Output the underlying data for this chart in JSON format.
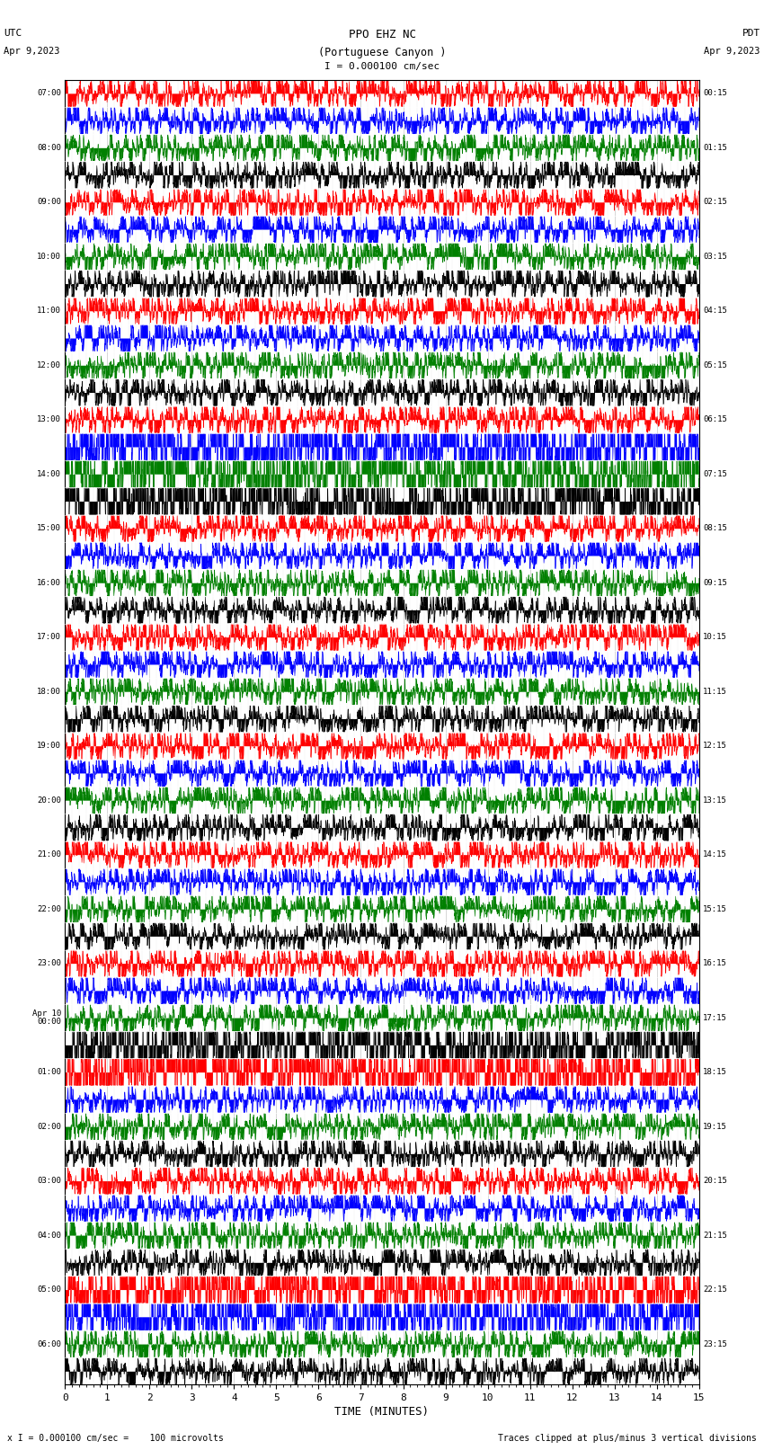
{
  "title_line1": "PPO EHZ NC",
  "title_line2": "(Portuguese Canyon )",
  "scale_label": "I = 0.000100 cm/sec",
  "utc_label": "UTC",
  "utc_date": "Apr 9,2023",
  "pdt_label": "PDT",
  "pdt_date": "Apr 9,2023",
  "xlabel": "TIME (MINUTES)",
  "footer_left": "x I = 0.000100 cm/sec =    100 microvolts",
  "footer_right": "Traces clipped at plus/minus 3 vertical divisions",
  "xlim": [
    0,
    15
  ],
  "xticks": [
    0,
    1,
    2,
    3,
    4,
    5,
    6,
    7,
    8,
    9,
    10,
    11,
    12,
    13,
    14,
    15
  ],
  "bg_color": "#ffffff",
  "plot_bg": "#ffffff",
  "num_traces": 48,
  "colors_cycle": [
    "#ff0000",
    "#0000ff",
    "#008000",
    "#000000"
  ],
  "left_labels": [
    "07:00",
    "",
    "08:00",
    "",
    "09:00",
    "",
    "10:00",
    "",
    "11:00",
    "",
    "12:00",
    "",
    "13:00",
    "",
    "14:00",
    "",
    "15:00",
    "",
    "16:00",
    "",
    "17:00",
    "",
    "18:00",
    "",
    "19:00",
    "",
    "20:00",
    "",
    "21:00",
    "",
    "22:00",
    "",
    "23:00",
    "",
    "Apr 10\n00:00",
    "",
    "01:00",
    "",
    "02:00",
    "",
    "03:00",
    "",
    "04:00",
    "",
    "05:00",
    "",
    "06:00",
    ""
  ],
  "right_labels": [
    "00:15",
    "",
    "01:15",
    "",
    "02:15",
    "",
    "03:15",
    "",
    "04:15",
    "",
    "05:15",
    "",
    "06:15",
    "",
    "07:15",
    "",
    "08:15",
    "",
    "09:15",
    "",
    "10:15",
    "",
    "11:15",
    "",
    "12:15",
    "",
    "13:15",
    "",
    "14:15",
    "",
    "15:15",
    "",
    "16:15",
    "",
    "17:15",
    "",
    "18:15",
    "",
    "19:15",
    "",
    "20:15",
    "",
    "21:15",
    "",
    "22:15",
    "",
    "23:15",
    ""
  ],
  "seed": 42,
  "base_noise_amp": 0.35,
  "big_event_rows": [
    13,
    14,
    15
  ],
  "big_event_amp": 3.0,
  "medium_event_rows": [
    44,
    45
  ],
  "medium_event_amp": 2.0,
  "red_event_rows": [
    35,
    36
  ],
  "red_event_amp": 2.5,
  "npts": 3000
}
